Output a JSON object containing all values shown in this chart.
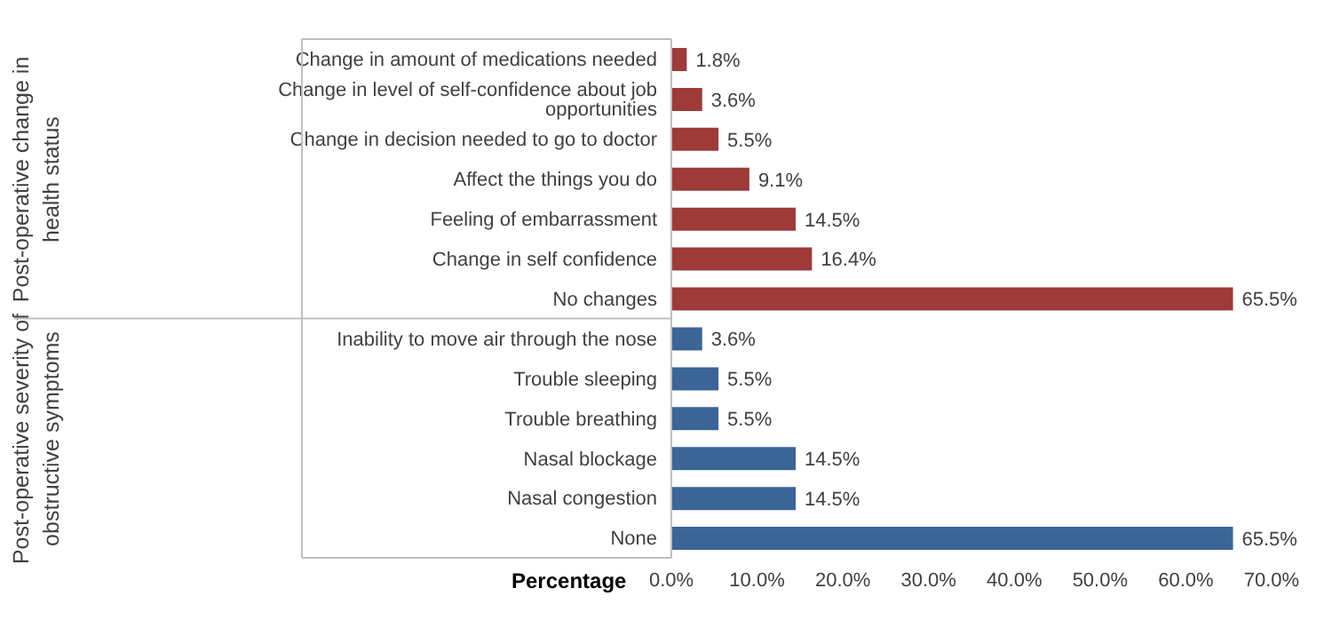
{
  "chart_data": {
    "type": "bar",
    "orientation": "horizontal",
    "xlabel": "Percentage",
    "categories": [
      "Change in amount of medications needed",
      "Change in level of self-confidence about job opportunities",
      "Change in decision needed to go to doctor",
      "Affect the things you do",
      "Feeling of embarrassment",
      "Change in self confidence",
      "No changes",
      "Inability to move air through the nose",
      "Trouble sleeping",
      "Trouble breathing",
      "Nasal blockage",
      "Nasal congestion",
      "None"
    ],
    "series": [
      {
        "color": "#9e3a38",
        "values": [
          1.8,
          3.6,
          5.5,
          9.1,
          14.5,
          16.4,
          65.5,
          null,
          null,
          null,
          null,
          null,
          null
        ],
        "value_labels": [
          "1.8%",
          "3.6%",
          "5.5%",
          "9.1%",
          "14.5%",
          "16.4%",
          "65.5%",
          null,
          null,
          null,
          null,
          null,
          null
        ]
      },
      {
        "color": "#3a6596",
        "values": [
          null,
          null,
          null,
          null,
          null,
          null,
          null,
          3.6,
          5.5,
          5.5,
          14.5,
          14.5,
          65.5
        ],
        "value_labels": [
          null,
          null,
          null,
          null,
          null,
          null,
          null,
          "3.6%",
          "5.5%",
          "5.5%",
          "14.5%",
          "14.5%",
          "65.5%"
        ]
      }
    ],
    "xlim": [
      0,
      70
    ],
    "xticks": [
      {
        "value": 0,
        "label": "0.0%"
      },
      {
        "value": 10,
        "label": "10.0%"
      },
      {
        "value": 20,
        "label": "20.0%"
      },
      {
        "value": 30,
        "label": "30.0%"
      },
      {
        "value": 40,
        "label": "40.0%"
      },
      {
        "value": 50,
        "label": "50.0%"
      },
      {
        "value": 60,
        "label": "60.0%"
      },
      {
        "value": 70,
        "label": "70.0%"
      }
    ],
    "annotations": [
      "Post-operative change in health status",
      "Post-operative severity of obstructive symptoms"
    ],
    "grid": false,
    "legend": false
  }
}
